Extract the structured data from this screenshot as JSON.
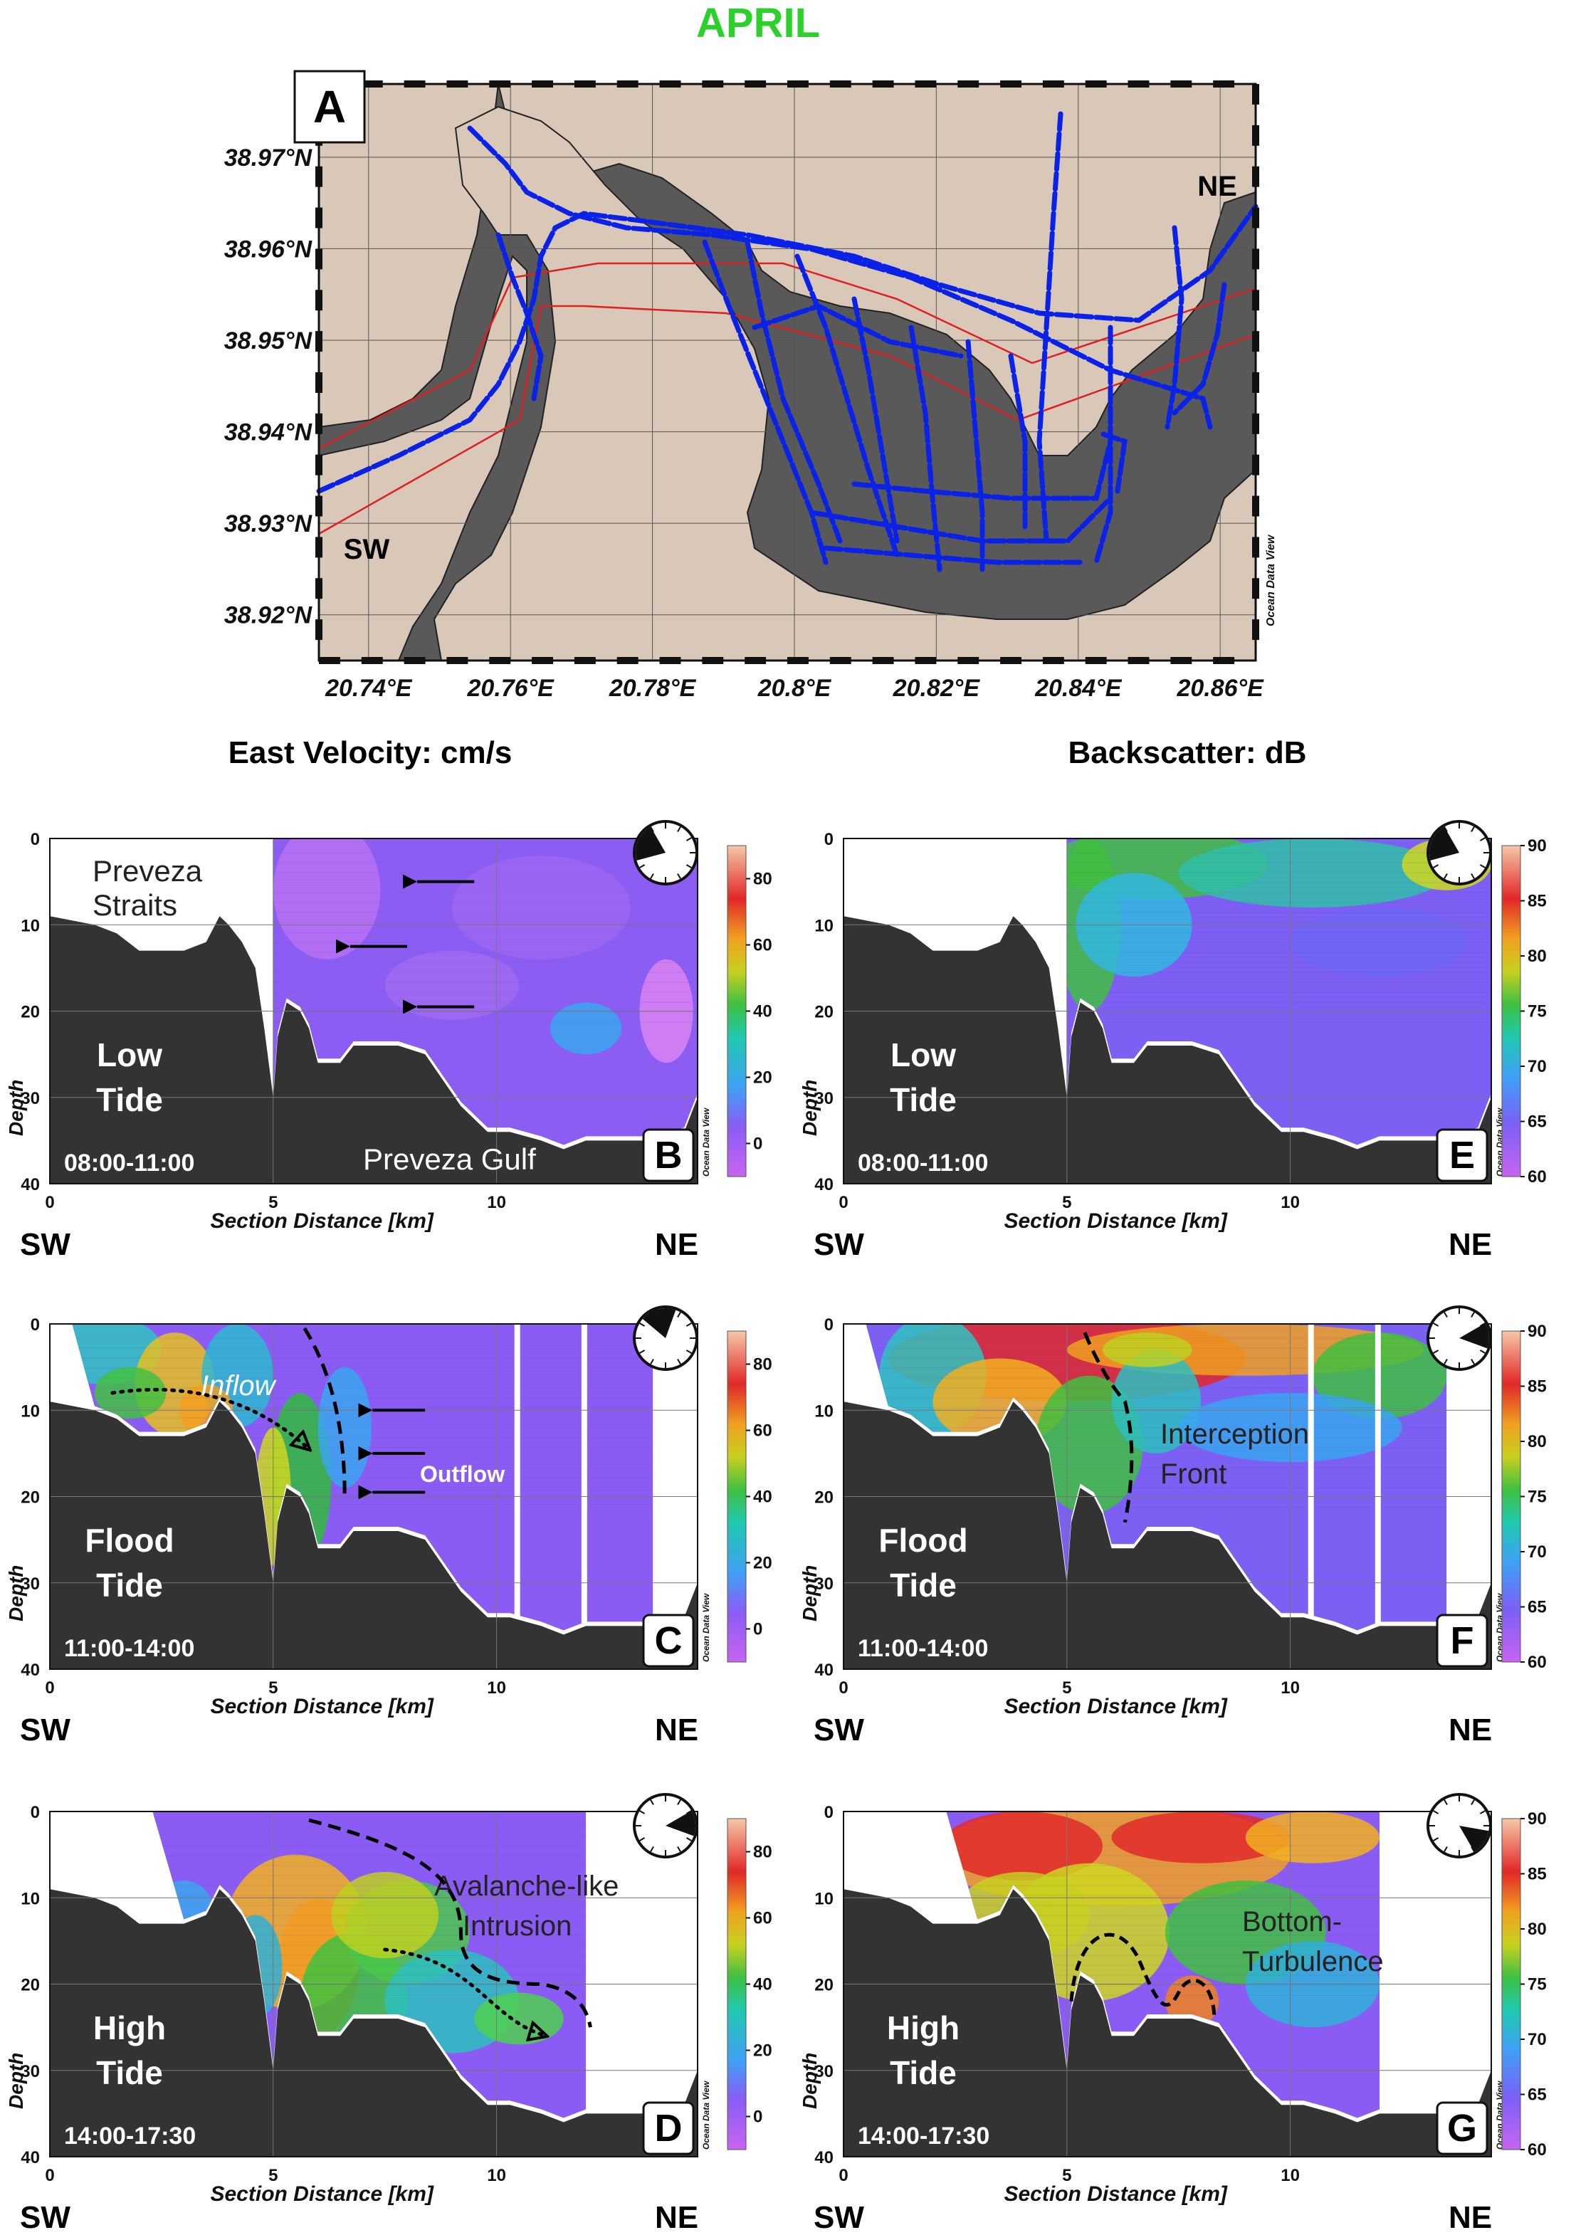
{
  "chart_data": {
    "type": "figure",
    "title": "APRIL",
    "title_color": "#2bd02b",
    "map": {
      "panel": "A",
      "lat_ticks": [
        "38.97°N",
        "38.96°N",
        "38.95°N",
        "38.94°N",
        "38.93°N",
        "38.92°N"
      ],
      "lon_ticks": [
        "20.74°E",
        "20.76°E",
        "20.78°E",
        "20.8°E",
        "20.82°E",
        "20.84°E",
        "20.86°E"
      ],
      "lat_range": [
        38.915,
        38.978
      ],
      "lon_range": [
        20.733,
        20.865
      ],
      "labels": {
        "ne": "NE",
        "sw": "SW"
      },
      "watermark": "Ocean Data View"
    },
    "left_heading": "East Velocity: cm/s",
    "right_heading": "Backscatter: dB",
    "velocity_colorbar": {
      "ticks": [
        "80",
        "60",
        "40",
        "20",
        "0"
      ],
      "range": [
        -10,
        90
      ]
    },
    "backscatter_colorbar": {
      "ticks": [
        "90",
        "85",
        "80",
        "75",
        "70",
        "65",
        "60"
      ],
      "range": [
        60,
        90
      ]
    },
    "x_axis": {
      "label": "Section Distance [km]",
      "ticks": [
        "0",
        "5",
        "10"
      ],
      "range": [
        0,
        14.5
      ]
    },
    "y_axis": {
      "label": "Depth",
      "ticks": [
        "0",
        "10",
        "20",
        "30",
        "40"
      ],
      "range": [
        0,
        40
      ]
    },
    "direction": {
      "sw": "SW",
      "ne": "NE"
    },
    "panels": [
      {
        "id": "B",
        "variable": "East Velocity",
        "tide": [
          "Low",
          "Tide"
        ],
        "time": "08:00-11:00",
        "data_start_km": 5.0,
        "data_end_km": 14.5,
        "annotations": [
          "Preveza",
          "Straits",
          "Preveza Gulf"
        ]
      },
      {
        "id": "C",
        "variable": "East Velocity",
        "tide": [
          "Flood",
          "Tide"
        ],
        "time": "11:00-14:00",
        "data_start_km": 0.5,
        "data_end_km": 13.5,
        "annotations": [
          "Inflow",
          "Outflow"
        ]
      },
      {
        "id": "D",
        "variable": "East Velocity",
        "tide": [
          "High",
          "Tide"
        ],
        "time": "14:00-17:30",
        "data_start_km": 2.3,
        "data_end_km": 12.0,
        "annotations": [
          "Avalanche-like",
          "Intrusion"
        ]
      },
      {
        "id": "E",
        "variable": "Backscatter",
        "tide": [
          "Low",
          "Tide"
        ],
        "time": "08:00-11:00",
        "data_start_km": 5.0,
        "data_end_km": 14.5,
        "annotations": []
      },
      {
        "id": "F",
        "variable": "Backscatter",
        "tide": [
          "Flood",
          "Tide"
        ],
        "time": "11:00-14:00",
        "data_start_km": 0.5,
        "data_end_km": 13.5,
        "annotations": [
          "Interception",
          "Front"
        ]
      },
      {
        "id": "G",
        "variable": "Backscatter",
        "tide": [
          "High",
          "Tide"
        ],
        "time": "14:00-17:30",
        "data_start_km": 2.3,
        "data_end_km": 12.0,
        "annotations": [
          "Bottom-",
          "Turbulence"
        ]
      }
    ],
    "bathymetry": [
      [
        0,
        9
      ],
      [
        1,
        10
      ],
      [
        1.5,
        11
      ],
      [
        2,
        13
      ],
      [
        3,
        13
      ],
      [
        3.5,
        12
      ],
      [
        3.8,
        9
      ],
      [
        4,
        10
      ],
      [
        4.3,
        12
      ],
      [
        4.6,
        15
      ],
      [
        4.8,
        22
      ],
      [
        5,
        30
      ],
      [
        5.1,
        23
      ],
      [
        5.3,
        19
      ],
      [
        5.6,
        20
      ],
      [
        5.8,
        22
      ],
      [
        6,
        26
      ],
      [
        6.5,
        26
      ],
      [
        6.8,
        24
      ],
      [
        7.3,
        24
      ],
      [
        7.8,
        24
      ],
      [
        8.4,
        25
      ],
      [
        8.8,
        28
      ],
      [
        9.2,
        31
      ],
      [
        9.8,
        34
      ],
      [
        10.3,
        34
      ],
      [
        11,
        35
      ],
      [
        11.5,
        36
      ],
      [
        12,
        35
      ],
      [
        13.5,
        35
      ],
      [
        14.2,
        34
      ],
      [
        14.5,
        30
      ]
    ]
  }
}
